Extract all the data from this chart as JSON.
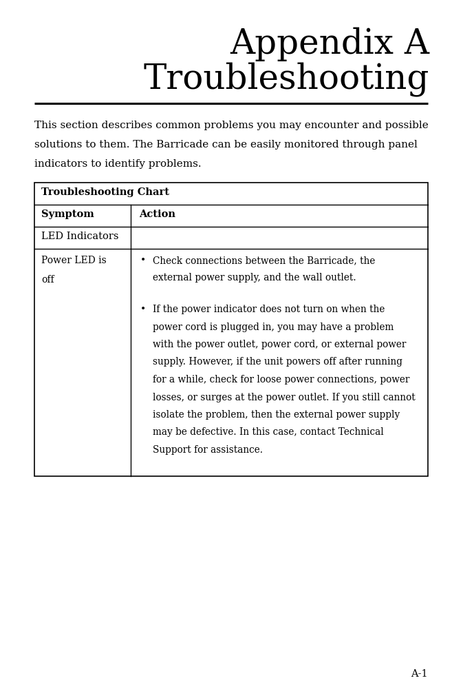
{
  "background_color": "#ffffff",
  "title_line1": "Appendix A",
  "title_line2": "Troubleshooting",
  "title_fontsize_large": 38,
  "title_fontsize_small": 28,
  "title_font": "serif",
  "intro_text_lines": [
    "This section describes common problems you may encounter and possible",
    "solutions to them. The Barricade can be easily monitored through panel",
    "indicators to identify problems."
  ],
  "intro_fontsize": 11.0,
  "table_header": "Troubleshooting Chart",
  "col1_header": "Symptom",
  "col2_header": "Action",
  "section_row": "LED Indicators",
  "symptom_line1": "Power LED is",
  "symptom_line2": "off",
  "bullet1_lines": [
    "Check connections between the Barricade, the",
    "external power supply, and the wall outlet."
  ],
  "bullet2_lines": [
    "If the power indicator does not turn on when the",
    "power cord is plugged in, you may have a problem",
    "with the power outlet, power cord, or external power",
    "supply. However, if the unit powers off after running",
    "for a while, check for loose power connections, power",
    "losses, or surges at the power outlet. If you still cannot",
    "isolate the problem, then the external power supply",
    "may be defective. In this case, contact Technical",
    "Support for assistance."
  ],
  "page_number": "A-1",
  "table_border_color": "#000000",
  "text_color": "#000000",
  "page_width": 6.57,
  "page_height": 10.1
}
